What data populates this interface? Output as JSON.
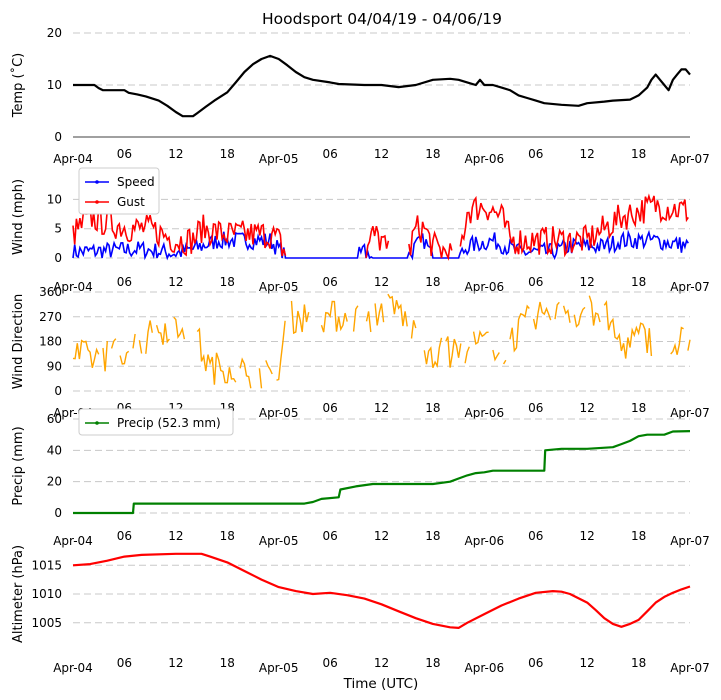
{
  "title": "Hoodsport 04/04/19 - 04/06/19",
  "xlabel": "Time (UTC)",
  "x_range_hours": [
    0,
    72
  ],
  "x_ticks": [
    {
      "h": 0,
      "label": "Apr-04"
    },
    {
      "h": 6,
      "label": "06"
    },
    {
      "h": 12,
      "label": "12"
    },
    {
      "h": 18,
      "label": "18"
    },
    {
      "h": 24,
      "label": "Apr-05"
    },
    {
      "h": 30,
      "label": "06"
    },
    {
      "h": 36,
      "label": "12"
    },
    {
      "h": 42,
      "label": "18"
    },
    {
      "h": 48,
      "label": "Apr-06"
    },
    {
      "h": 54,
      "label": "06"
    },
    {
      "h": 60,
      "label": "12"
    },
    {
      "h": 66,
      "label": "18"
    },
    {
      "h": 72,
      "label": "Apr-07"
    }
  ],
  "colors": {
    "temp": "#000000",
    "speed": "#0000ff",
    "gust": "#ff0000",
    "dir": "#ffa500",
    "precip": "#008000",
    "altim": "#ff0000",
    "grid": "#c8c8c8"
  },
  "chart_data": [
    {
      "type": "line",
      "ylabel": "Temp ($^\\circ$C)",
      "ylabel_text": "Temp (˚C)",
      "ylim": [
        0,
        20
      ],
      "yticks": [
        0,
        10,
        20
      ],
      "series": [
        {
          "name": "Temp",
          "color": "#000000",
          "points": [
            [
              0,
              10
            ],
            [
              2.5,
              10
            ],
            [
              3,
              9.4
            ],
            [
              3.5,
              9
            ],
            [
              6,
              9
            ],
            [
              6.5,
              8.5
            ],
            [
              7.5,
              8.2
            ],
            [
              8.5,
              7.8
            ],
            [
              10,
              7
            ],
            [
              11,
              6
            ],
            [
              12,
              4.8
            ],
            [
              12.8,
              4
            ],
            [
              14,
              4
            ],
            [
              14.5,
              4.6
            ],
            [
              15.5,
              5.8
            ],
            [
              16.5,
              7
            ],
            [
              18,
              8.6
            ],
            [
              19,
              10.5
            ],
            [
              20,
              12.5
            ],
            [
              21,
              14
            ],
            [
              22,
              15
            ],
            [
              23,
              15.6
            ],
            [
              24,
              15
            ],
            [
              25,
              13.8
            ],
            [
              26,
              12.5
            ],
            [
              27,
              11.5
            ],
            [
              28,
              11
            ],
            [
              30,
              10.5
            ],
            [
              31,
              10.2
            ],
            [
              34,
              10
            ],
            [
              36,
              10
            ],
            [
              38,
              9.6
            ],
            [
              40,
              10
            ],
            [
              42,
              11
            ],
            [
              44,
              11.2
            ],
            [
              45,
              11
            ],
            [
              46,
              10.5
            ],
            [
              47,
              10
            ],
            [
              47.5,
              11
            ],
            [
              48,
              10
            ],
            [
              49,
              10
            ],
            [
              50,
              9.5
            ],
            [
              51,
              9
            ],
            [
              52,
              8
            ],
            [
              53,
              7.5
            ],
            [
              54,
              7
            ],
            [
              55,
              6.5
            ],
            [
              57,
              6.2
            ],
            [
              59,
              6
            ],
            [
              60,
              6.5
            ],
            [
              62,
              6.8
            ],
            [
              63,
              7
            ],
            [
              65,
              7.2
            ],
            [
              66,
              8
            ],
            [
              67,
              9.5
            ],
            [
              67.5,
              11
            ],
            [
              68,
              12
            ],
            [
              68.5,
              11
            ],
            [
              69,
              10
            ],
            [
              69.5,
              9
            ],
            [
              70,
              11
            ],
            [
              70.5,
              12
            ],
            [
              71,
              13
            ],
            [
              71.5,
              13
            ],
            [
              72,
              12
            ]
          ]
        }
      ]
    },
    {
      "type": "line",
      "ylabel": "Wind (mph)",
      "ylim": [
        0,
        14
      ],
      "yticks": [
        0,
        5,
        10
      ],
      "legend": [
        "Speed",
        "Gust"
      ],
      "series": [
        {
          "name": "Speed",
          "color": "#0000ff",
          "profile": [
            [
              0,
              1
            ],
            [
              8,
              1.5
            ],
            [
              12,
              0.8
            ],
            [
              14,
              1.5
            ],
            [
              17,
              3
            ],
            [
              21,
              3
            ],
            [
              23,
              3
            ],
            [
              25,
              0
            ],
            [
              33,
              0
            ],
            [
              34,
              1
            ],
            [
              35,
              0
            ],
            [
              39,
              0
            ],
            [
              40,
              2
            ],
            [
              41,
              3
            ],
            [
              42,
              0
            ],
            [
              45,
              0
            ],
            [
              46,
              2
            ],
            [
              49,
              3
            ],
            [
              52,
              1
            ],
            [
              56,
              1
            ],
            [
              58,
              2
            ],
            [
              62,
              2
            ],
            [
              64,
              3
            ],
            [
              68,
              3
            ],
            [
              72,
              2
            ]
          ]
        },
        {
          "name": "Gust",
          "color": "#ff0000",
          "profile": [
            [
              0,
              4
            ],
            [
              2,
              7
            ],
            [
              4,
              6
            ],
            [
              7,
              5
            ],
            [
              9,
              5
            ],
            [
              12,
              3
            ],
            [
              14,
              3
            ],
            [
              15,
              5
            ],
            [
              18,
              4
            ],
            [
              21,
              4
            ],
            [
              23,
              4
            ],
            [
              24,
              3
            ],
            [
              25,
              0
            ],
            [
              34,
              0
            ],
            [
              35,
              4
            ],
            [
              36,
              3
            ],
            [
              37,
              0
            ],
            [
              39,
              0
            ],
            [
              40,
              5
            ],
            [
              41,
              5
            ],
            [
              42,
              2
            ],
            [
              45,
              0
            ],
            [
              46,
              8
            ],
            [
              48,
              9
            ],
            [
              50,
              7
            ],
            [
              51,
              3
            ],
            [
              56,
              3
            ],
            [
              58,
              3
            ],
            [
              60,
              3
            ],
            [
              62,
              5
            ],
            [
              64,
              7
            ],
            [
              66,
              8
            ],
            [
              68,
              9
            ],
            [
              72,
              8
            ]
          ]
        }
      ]
    },
    {
      "type": "line",
      "ylabel": "Wind Direction",
      "ylim": [
        0,
        360
      ],
      "yticks": [
        0,
        90,
        180,
        270,
        360
      ],
      "series": [
        {
          "name": "Direction",
          "color": "#ffa500",
          "profile": [
            [
              0,
              130
            ],
            [
              3,
              120
            ],
            [
              6,
              150
            ],
            [
              8,
              180
            ],
            [
              10,
              220
            ],
            [
              12,
              250
            ],
            [
              14,
              240
            ],
            [
              15,
              150
            ],
            [
              16,
              80
            ],
            [
              18,
              90
            ],
            [
              20,
              70
            ],
            [
              22,
              60
            ],
            [
              24,
              40
            ],
            [
              25,
              270
            ],
            [
              35,
              270
            ],
            [
              36,
              300
            ],
            [
              38,
              300
            ],
            [
              39,
              250
            ],
            [
              40,
              200
            ],
            [
              41,
              160
            ],
            [
              42,
              140
            ],
            [
              45,
              140
            ],
            [
              46,
              160
            ],
            [
              48,
              180
            ],
            [
              50,
              140
            ],
            [
              52,
              220
            ],
            [
              54,
              280
            ],
            [
              56,
              280
            ],
            [
              58,
              270
            ],
            [
              60,
              300
            ],
            [
              62,
              280
            ],
            [
              64,
              160
            ],
            [
              66,
              200
            ],
            [
              68,
              180
            ],
            [
              70,
              160
            ],
            [
              72,
              200
            ]
          ]
        }
      ]
    },
    {
      "type": "line",
      "ylabel": "Precip (mm)",
      "ylim": [
        0,
        60
      ],
      "yticks": [
        0,
        20,
        40,
        60
      ],
      "legend": [
        "Precip (52.3 mm)"
      ],
      "series": [
        {
          "name": "Precip (52.3 mm)",
          "color": "#008000",
          "points": [
            [
              0,
              0
            ],
            [
              7,
              0
            ],
            [
              7.1,
              6
            ],
            [
              27,
              6
            ],
            [
              28,
              7
            ],
            [
              29,
              9
            ],
            [
              31,
              10
            ],
            [
              31.2,
              15
            ],
            [
              33,
              17
            ],
            [
              35,
              18.5
            ],
            [
              42,
              18.5
            ],
            [
              44,
              20
            ],
            [
              45,
              22
            ],
            [
              46,
              24
            ],
            [
              47,
              25.5
            ],
            [
              48,
              26
            ],
            [
              49,
              27
            ],
            [
              55,
              27
            ],
            [
              55.1,
              40
            ],
            [
              57,
              41
            ],
            [
              60,
              41
            ],
            [
              63,
              42
            ],
            [
              64,
              44
            ],
            [
              65,
              46
            ],
            [
              66,
              49
            ],
            [
              67,
              50
            ],
            [
              69,
              50
            ],
            [
              70,
              52
            ],
            [
              72,
              52.3
            ]
          ]
        }
      ]
    },
    {
      "type": "line",
      "ylabel": "Altimeter (hPa)",
      "ylim": [
        1002,
        1018
      ],
      "yticks": [
        1005,
        1010,
        1015
      ],
      "series": [
        {
          "name": "Altimeter",
          "color": "#ff0000",
          "points": [
            [
              0,
              1015
            ],
            [
              2,
              1015.2
            ],
            [
              4,
              1015.8
            ],
            [
              6,
              1016.5
            ],
            [
              8,
              1016.8
            ],
            [
              12,
              1017
            ],
            [
              15,
              1017
            ],
            [
              16,
              1016.5
            ],
            [
              18,
              1015.5
            ],
            [
              20,
              1014
            ],
            [
              22,
              1012.5
            ],
            [
              24,
              1011.2
            ],
            [
              26,
              1010.5
            ],
            [
              28,
              1010
            ],
            [
              30,
              1010.2
            ],
            [
              32,
              1009.8
            ],
            [
              34,
              1009.2
            ],
            [
              36,
              1008.2
            ],
            [
              38,
              1007
            ],
            [
              40,
              1005.8
            ],
            [
              42,
              1004.8
            ],
            [
              44,
              1004.2
            ],
            [
              45,
              1004.1
            ],
            [
              46,
              1005
            ],
            [
              48,
              1006.5
            ],
            [
              50,
              1008
            ],
            [
              52,
              1009.2
            ],
            [
              54,
              1010.2
            ],
            [
              56,
              1010.5
            ],
            [
              57,
              1010.4
            ],
            [
              58,
              1010
            ],
            [
              60,
              1008.5
            ],
            [
              61,
              1007.2
            ],
            [
              62,
              1005.8
            ],
            [
              63,
              1004.8
            ],
            [
              64,
              1004.3
            ],
            [
              65,
              1004.8
            ],
            [
              66,
              1005.5
            ],
            [
              67,
              1007
            ],
            [
              68,
              1008.5
            ],
            [
              69,
              1009.5
            ],
            [
              70,
              1010.2
            ],
            [
              71,
              1010.8
            ],
            [
              72,
              1011.3
            ]
          ]
        }
      ]
    }
  ]
}
